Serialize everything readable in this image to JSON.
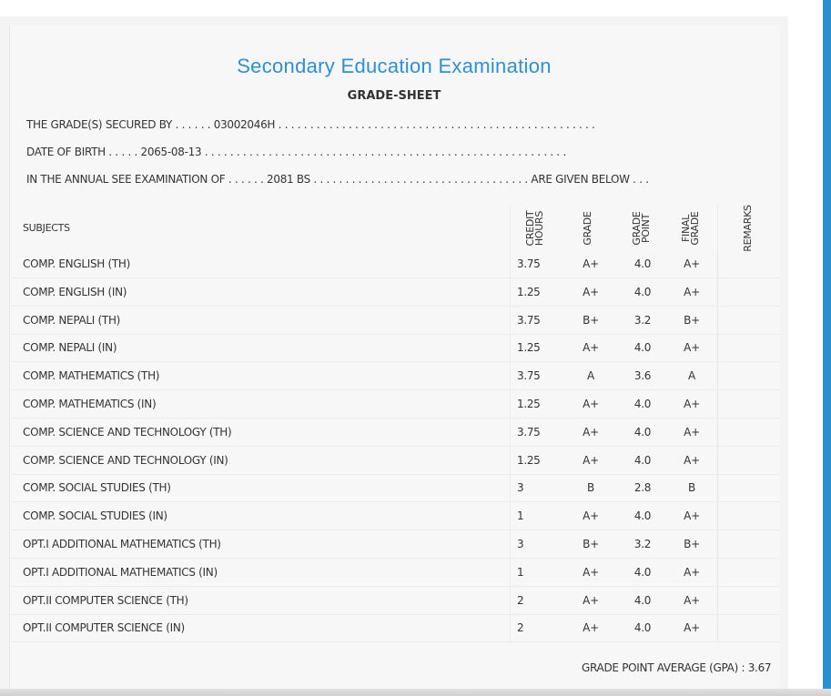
{
  "header": {
    "title": "Secondary Education Examination",
    "subtitle": "GRADE-SHEET"
  },
  "info": {
    "secured_by_line": "THE GRADE(S) SECURED BY . . . . . . 03002046H . . . . . . . . . . . . . . . . . . . . . . . . . . . . . . . . . . . . . . . . . . . . . . . . . .",
    "dob_line": "DATE OF BIRTH . . . . . 2065-08-13 . . . . . . . . . . . . . . . . . . . . . . . . . . . . . . . . . . . . . . . . . . . . . . . . . . . . . . . . .",
    "exam_line": "IN THE ANNUAL SEE EXAMINATION OF . . . . . . 2081 BS . . . . . . . . . . . . . . . . . . . . . . . . . . . . . . . . . . ARE GIVEN BELOW . . ."
  },
  "table": {
    "headers": {
      "subjects": "SUBJECTS",
      "credit_hours_1": "CREDIT",
      "credit_hours_2": "HOURS",
      "grade": "GRADE",
      "grade_point_1": "GRADE",
      "grade_point_2": "POINT",
      "final_grade_1": "FINAL",
      "final_grade_2": "GRADE",
      "remarks": "REMARKS"
    },
    "rows": [
      {
        "subject": "COMP. ENGLISH (TH)",
        "credit": "3.75",
        "grade": "A+",
        "point": "4.0",
        "final": "A+"
      },
      {
        "subject": "COMP. ENGLISH (IN)",
        "credit": "1.25",
        "grade": "A+",
        "point": "4.0",
        "final": "A+"
      },
      {
        "subject": "COMP. NEPALI (TH)",
        "credit": "3.75",
        "grade": "B+",
        "point": "3.2",
        "final": "B+"
      },
      {
        "subject": "COMP. NEPALI (IN)",
        "credit": "1.25",
        "grade": "A+",
        "point": "4.0",
        "final": "A+"
      },
      {
        "subject": "COMP. MATHEMATICS (TH)",
        "credit": "3.75",
        "grade": "A",
        "point": "3.6",
        "final": "A"
      },
      {
        "subject": "COMP. MATHEMATICS (IN)",
        "credit": "1.25",
        "grade": "A+",
        "point": "4.0",
        "final": "A+"
      },
      {
        "subject": "COMP. SCIENCE AND TECHNOLOGY (TH)",
        "credit": "3.75",
        "grade": "A+",
        "point": "4.0",
        "final": "A+"
      },
      {
        "subject": "COMP. SCIENCE AND TECHNOLOGY (IN)",
        "credit": "1.25",
        "grade": "A+",
        "point": "4.0",
        "final": "A+"
      },
      {
        "subject": "COMP. SOCIAL STUDIES (TH)",
        "credit": "3",
        "grade": "B",
        "point": "2.8",
        "final": "B"
      },
      {
        "subject": "COMP. SOCIAL STUDIES (IN)",
        "credit": "1",
        "grade": "A+",
        "point": "4.0",
        "final": "A+"
      },
      {
        "subject": "OPT.I ADDITIONAL MATHEMATICS (TH)",
        "credit": "3",
        "grade": "B+",
        "point": "3.2",
        "final": "B+"
      },
      {
        "subject": "OPT.I ADDITIONAL MATHEMATICS (IN)",
        "credit": "1",
        "grade": "A+",
        "point": "4.0",
        "final": "A+"
      },
      {
        "subject": "OPT.II COMPUTER SCIENCE (TH)",
        "credit": "2",
        "grade": "A+",
        "point": "4.0",
        "final": "A+"
      },
      {
        "subject": "OPT.II COMPUTER SCIENCE (IN)",
        "credit": "2",
        "grade": "A+",
        "point": "4.0",
        "final": "A+"
      }
    ]
  },
  "footer": {
    "gpa_text": "GRADE POINT AVERAGE (GPA) : 3.67"
  },
  "colors": {
    "title": "#2e8fd3",
    "accent_bar": "#2a8fd0",
    "panel": "#f7f7f7"
  }
}
